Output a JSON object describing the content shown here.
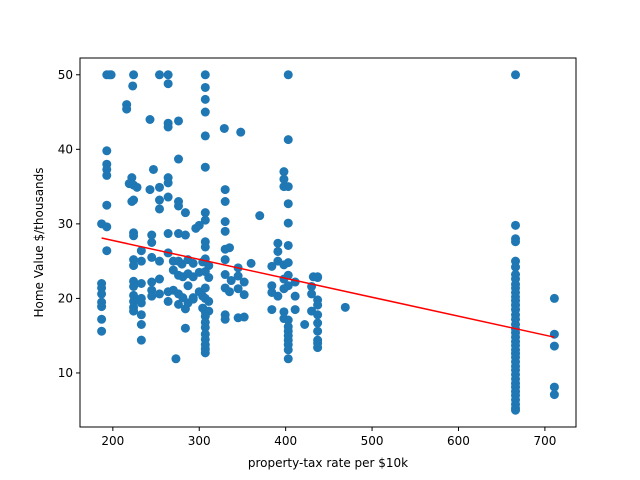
{
  "chart_data": {
    "type": "scatter",
    "title": "",
    "xlabel": "property-tax rate per $10k",
    "ylabel": "Home Value $/thousands",
    "xlim": [
      162,
      736
    ],
    "ylim": [
      2.75,
      52.25
    ],
    "xticks": [
      200,
      300,
      400,
      500,
      600,
      700
    ],
    "yticks": [
      10,
      20,
      30,
      40,
      50
    ],
    "grid": false,
    "legend": "none",
    "colors": {
      "points": "#1f77b4",
      "fit": "#ff0000"
    },
    "fit_line": {
      "x": [
        187,
        711
      ],
      "y": [
        28.1,
        14.8
      ]
    },
    "series": [
      {
        "points": [
          [
            193,
            50
          ],
          [
            196,
            50
          ],
          [
            198,
            50
          ],
          [
            224,
            50
          ],
          [
            254,
            50
          ],
          [
            264,
            50
          ],
          [
            307,
            50
          ],
          [
            403,
            50
          ],
          [
            666,
            50
          ],
          [
            223,
            48.5
          ],
          [
            307,
            48.3
          ],
          [
            307,
            46.7
          ],
          [
            264,
            48.8
          ],
          [
            307,
            45
          ],
          [
            216,
            46
          ],
          [
            216,
            45.4
          ],
          [
            243,
            44
          ],
          [
            264,
            43.5
          ],
          [
            276,
            43.8
          ],
          [
            264,
            43
          ],
          [
            307,
            41.8
          ],
          [
            329,
            42.8
          ],
          [
            348,
            42.3
          ],
          [
            403,
            41.3
          ],
          [
            193,
            39.8
          ],
          [
            193,
            38
          ],
          [
            193,
            37.3
          ],
          [
            193,
            36.5
          ],
          [
            247,
            37.3
          ],
          [
            276,
            38.7
          ],
          [
            307,
            37.6
          ],
          [
            398,
            37
          ],
          [
            398,
            36
          ],
          [
            398,
            35
          ],
          [
            403,
            35
          ],
          [
            264,
            36.2
          ],
          [
            264,
            35.5
          ],
          [
            222,
            36.2
          ],
          [
            219,
            35.4
          ],
          [
            224,
            35.2
          ],
          [
            228,
            34.9
          ],
          [
            243,
            34.6
          ],
          [
            254,
            34.9
          ],
          [
            187,
            30
          ],
          [
            193,
            29.6
          ],
          [
            193,
            32.5
          ],
          [
            224,
            33.2
          ],
          [
            222,
            33
          ],
          [
            254,
            33.2
          ],
          [
            254,
            32
          ],
          [
            264,
            33.6
          ],
          [
            276,
            33
          ],
          [
            276,
            32.4
          ],
          [
            284,
            31.5
          ],
          [
            307,
            31.5
          ],
          [
            307,
            30.5
          ],
          [
            330,
            34.6
          ],
          [
            330,
            33
          ],
          [
            330,
            30.3
          ],
          [
            370,
            31.1
          ],
          [
            403,
            32.7
          ],
          [
            403,
            30.1
          ],
          [
            224,
            28.8
          ],
          [
            224,
            28.4
          ],
          [
            245,
            28.5
          ],
          [
            245,
            27.5
          ],
          [
            264,
            28.7
          ],
          [
            276,
            28.7
          ],
          [
            284,
            28.5
          ],
          [
            296,
            29.4
          ],
          [
            300,
            29.8
          ],
          [
            307,
            27.6
          ],
          [
            307,
            26.9
          ],
          [
            330,
            29
          ],
          [
            330,
            26.6
          ],
          [
            335,
            26.8
          ],
          [
            391,
            27.4
          ],
          [
            391,
            26.3
          ],
          [
            403,
            27.1
          ],
          [
            391,
            25
          ],
          [
            666,
            29.8
          ],
          [
            666,
            28
          ],
          [
            666,
            27.6
          ],
          [
            193,
            26.4
          ],
          [
            233,
            26.4
          ],
          [
            224,
            25.2
          ],
          [
            224,
            24.4
          ],
          [
            233,
            25
          ],
          [
            245,
            25.5
          ],
          [
            254,
            25
          ],
          [
            264,
            26.1
          ],
          [
            270,
            25
          ],
          [
            276,
            25
          ],
          [
            280,
            24.6
          ],
          [
            287,
            25.2
          ],
          [
            293,
            24.7
          ],
          [
            304,
            24.9
          ],
          [
            307,
            25.3
          ],
          [
            311,
            24.4
          ],
          [
            330,
            25.2
          ],
          [
            345,
            24.1
          ],
          [
            360,
            24.7
          ],
          [
            384,
            24.3
          ],
          [
            398,
            24.5
          ],
          [
            403,
            24.8
          ],
          [
            432,
            22.9
          ],
          [
            437,
            22.9
          ],
          [
            666,
            25
          ],
          [
            666,
            24.2
          ],
          [
            666,
            23.2
          ],
          [
            187,
            22
          ],
          [
            187,
            21.4
          ],
          [
            187,
            20.6
          ],
          [
            224,
            22.3
          ],
          [
            224,
            21.6
          ],
          [
            233,
            22
          ],
          [
            245,
            22.2
          ],
          [
            254,
            22.6
          ],
          [
            270,
            23.8
          ],
          [
            276,
            23.1
          ],
          [
            281,
            22.9
          ],
          [
            287,
            23.3
          ],
          [
            293,
            22.9
          ],
          [
            300,
            23.5
          ],
          [
            307,
            23.6
          ],
          [
            311,
            22.8
          ],
          [
            330,
            23.2
          ],
          [
            337,
            22.4
          ],
          [
            345,
            23
          ],
          [
            352,
            22.2
          ],
          [
            384,
            21.7
          ],
          [
            398,
            22.6
          ],
          [
            403,
            23.1
          ],
          [
            411,
            22.2
          ],
          [
            430,
            21.6
          ],
          [
            437,
            22.8
          ],
          [
            187,
            19.5
          ],
          [
            187,
            18.9
          ],
          [
            224,
            20.4
          ],
          [
            224,
            19.6
          ],
          [
            224,
            18.8
          ],
          [
            233,
            20
          ],
          [
            233,
            19.4
          ],
          [
            245,
            21.1
          ],
          [
            245,
            20.3
          ],
          [
            254,
            20.6
          ],
          [
            264,
            20.9
          ],
          [
            270,
            21.1
          ],
          [
            276,
            20.6
          ],
          [
            281,
            20.1
          ],
          [
            287,
            21.7
          ],
          [
            293,
            20.1
          ],
          [
            300,
            20.9
          ],
          [
            304,
            20.3
          ],
          [
            307,
            21.4
          ],
          [
            307,
            20
          ],
          [
            311,
            19.6
          ],
          [
            330,
            21.4
          ],
          [
            335,
            20.9
          ],
          [
            345,
            21.3
          ],
          [
            352,
            20.5
          ],
          [
            384,
            20.8
          ],
          [
            391,
            20.3
          ],
          [
            398,
            21.3
          ],
          [
            403,
            21.7
          ],
          [
            411,
            20.3
          ],
          [
            430,
            20.6
          ],
          [
            437,
            19.8
          ],
          [
            437,
            19.1
          ],
          [
            469,
            18.8
          ],
          [
            187,
            17.2
          ],
          [
            187,
            15.6
          ],
          [
            224,
            18.3
          ],
          [
            233,
            17.8
          ],
          [
            233,
            16.5
          ],
          [
            233,
            14.4
          ],
          [
            264,
            19.6
          ],
          [
            276,
            19.2
          ],
          [
            284,
            18.6
          ],
          [
            287,
            19.4
          ],
          [
            293,
            19.9
          ],
          [
            304,
            18.7
          ],
          [
            307,
            18.2
          ],
          [
            307,
            17.6
          ],
          [
            307,
            16.8
          ],
          [
            307,
            16.1
          ],
          [
            311,
            18.3
          ],
          [
            330,
            17.8
          ],
          [
            330,
            17.2
          ],
          [
            345,
            17.4
          ],
          [
            352,
            17.5
          ],
          [
            384,
            18.5
          ],
          [
            398,
            18.2
          ],
          [
            398,
            17.3
          ],
          [
            403,
            17.1
          ],
          [
            403,
            16.2
          ],
          [
            411,
            18.5
          ],
          [
            430,
            18.3
          ],
          [
            437,
            17.8
          ],
          [
            437,
            16.7
          ],
          [
            437,
            15.6
          ],
          [
            284,
            16
          ],
          [
            307,
            15.2
          ],
          [
            307,
            14.5
          ],
          [
            307,
            13.8
          ],
          [
            307,
            13.2
          ],
          [
            307,
            12.7
          ],
          [
            403,
            15.6
          ],
          [
            403,
            15
          ],
          [
            403,
            14.4
          ],
          [
            403,
            13.8
          ],
          [
            403,
            13.1
          ],
          [
            403,
            11.9
          ],
          [
            273,
            11.9
          ],
          [
            422,
            16.5
          ],
          [
            437,
            14.4
          ],
          [
            437,
            14
          ],
          [
            437,
            13.4
          ],
          [
            666,
            22.6
          ],
          [
            666,
            21.9
          ],
          [
            666,
            21.4
          ],
          [
            666,
            20.8
          ],
          [
            666,
            20.2
          ],
          [
            666,
            19.7
          ],
          [
            666,
            19.1
          ],
          [
            666,
            18.5
          ],
          [
            666,
            17.8
          ],
          [
            666,
            17.2
          ],
          [
            666,
            16.5
          ],
          [
            666,
            15.9
          ],
          [
            666,
            15.4
          ],
          [
            666,
            14.8
          ],
          [
            666,
            14.2
          ],
          [
            666,
            13.7
          ],
          [
            666,
            13.1
          ],
          [
            666,
            12.6
          ],
          [
            666,
            12.1
          ],
          [
            666,
            11.5
          ],
          [
            666,
            10.9
          ],
          [
            666,
            10.4
          ],
          [
            666,
            9.8
          ],
          [
            666,
            9.2
          ],
          [
            666,
            8.6
          ],
          [
            666,
            8.1
          ],
          [
            666,
            7.5
          ],
          [
            666,
            7
          ],
          [
            666,
            6.4
          ],
          [
            666,
            5.8
          ],
          [
            666,
            5.3
          ],
          [
            666,
            5
          ],
          [
            711,
            20
          ],
          [
            711,
            15.2
          ],
          [
            711,
            13.6
          ],
          [
            711,
            8.1
          ],
          [
            711,
            7.1
          ]
        ]
      }
    ]
  }
}
